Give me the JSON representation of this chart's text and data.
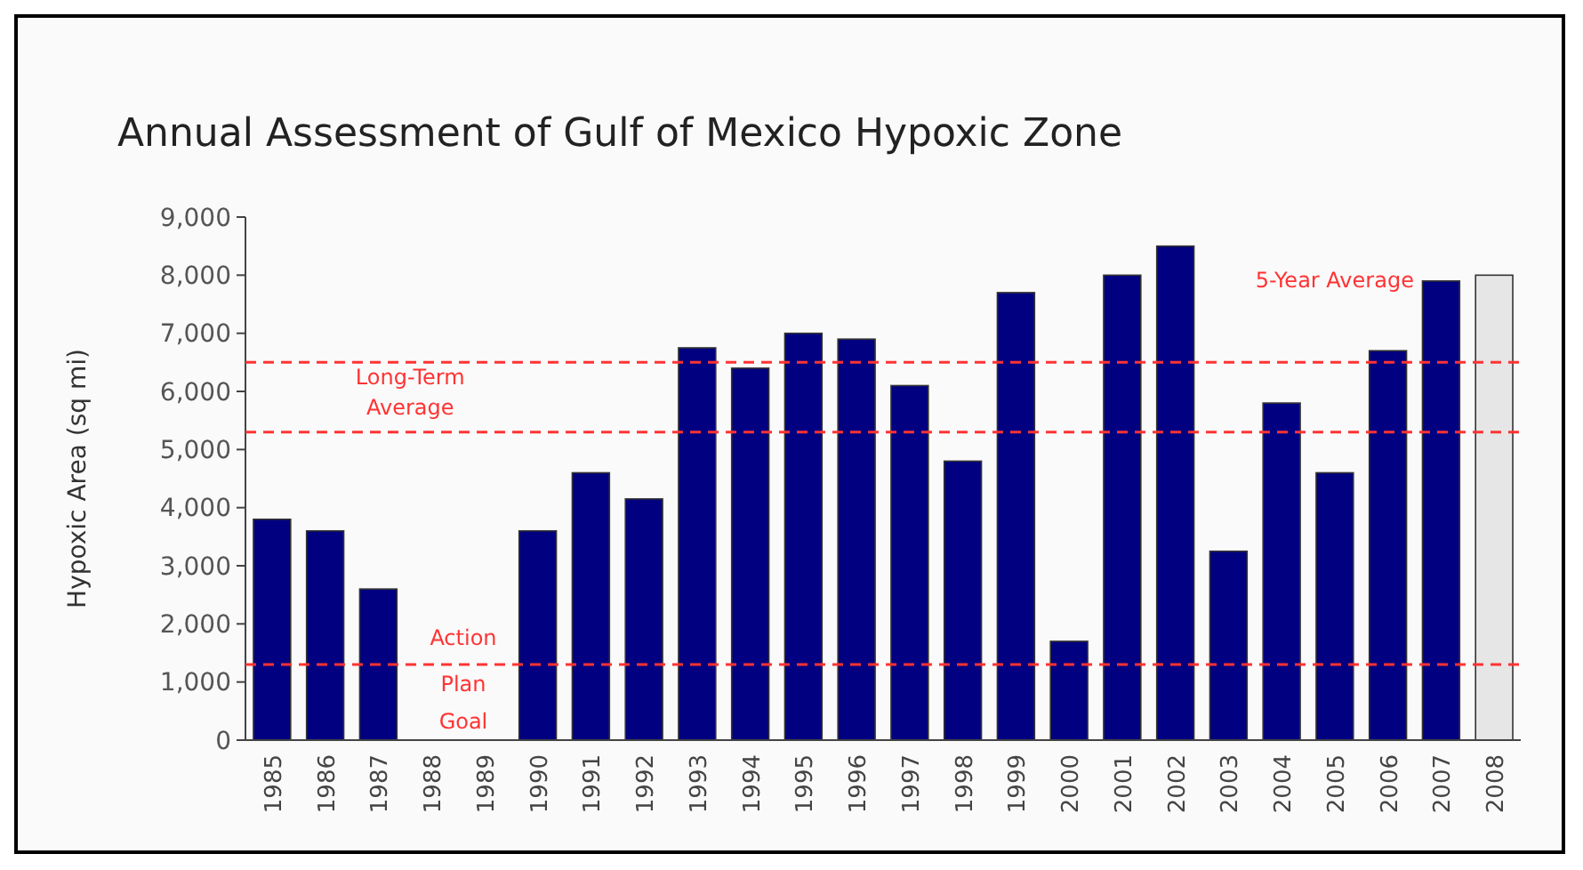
{
  "chart_data": {
    "type": "bar",
    "title": "Annual Assessment of Gulf of Mexico Hypoxic Zone",
    "ylabel": "Hypoxic Area (sq mi)",
    "categories": [
      "1985",
      "1986",
      "1987",
      "1988",
      "1989",
      "1990",
      "1991",
      "1992",
      "1993",
      "1994",
      "1995",
      "1996",
      "1997",
      "1998",
      "1999",
      "2000",
      "2001",
      "2002",
      "2003",
      "2004",
      "2005",
      "2006",
      "2007",
      "2008"
    ],
    "values": [
      3800,
      3600,
      2600,
      null,
      null,
      3600,
      4600,
      4150,
      6750,
      6400,
      7000,
      6900,
      6100,
      4800,
      7700,
      1700,
      8000,
      8500,
      3250,
      5800,
      4600,
      6700,
      7900,
      8000
    ],
    "colors": [
      "#000080",
      "#000080",
      "#000080",
      null,
      null,
      "#000080",
      "#000080",
      "#000080",
      "#000080",
      "#000080",
      "#000080",
      "#000080",
      "#000080",
      "#000080",
      "#000080",
      "#000080",
      "#000080",
      "#000080",
      "#000080",
      "#000080",
      "#000080",
      "#000080",
      "#000080",
      "#e6e6e6"
    ],
    "ylim": [
      0,
      9000
    ],
    "yticks": [
      0,
      {
        "value": 1000,
        "label": "1,000"
      },
      {
        "value": 2000,
        "label": "2,000"
      },
      {
        "value": 3000,
        "label": "3,000"
      },
      {
        "value": 4000,
        "label": "4,000"
      },
      {
        "value": 5000,
        "label": "5,000"
      },
      {
        "value": 6000,
        "label": "6,000"
      },
      {
        "value": 7000,
        "label": "7,000"
      },
      {
        "value": 8000,
        "label": "8,000"
      },
      {
        "value": 9000,
        "label": "9,000"
      }
    ],
    "ref_lines": [
      {
        "axis": "y",
        "value": 5300,
        "label": "Long-Term Average",
        "color": "#ff3333",
        "line_style": "dashed"
      },
      {
        "axis": "y",
        "value": 1300,
        "label": "Action Plan Goal",
        "color": "#ff3333",
        "line_style": "dashed"
      },
      {
        "axis": "y",
        "value": 6500,
        "label": "5-Year Average",
        "color": "#ff3333",
        "line_style": "dashed"
      }
    ],
    "grid": false
  }
}
